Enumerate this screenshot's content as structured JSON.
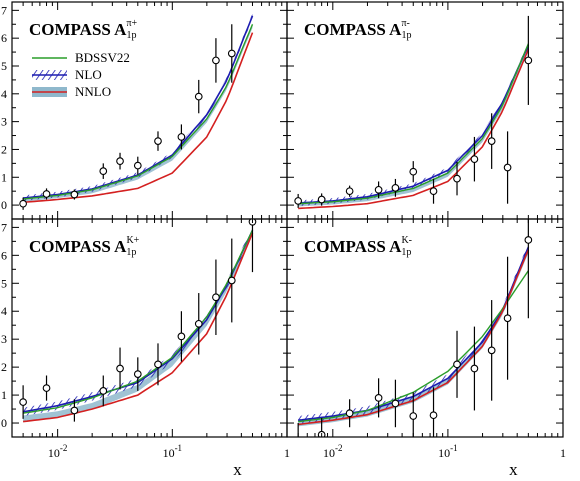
{
  "figure": {
    "xlabel": "x",
    "x_tick_labels": [
      {
        "base": "10",
        "exp": "-2",
        "value": 0.01
      },
      {
        "base": "10",
        "exp": "-1",
        "value": 0.1
      },
      {
        "base": "1",
        "exp": "",
        "value": 1
      }
    ],
    "y_tick_labels": [
      "0",
      "1",
      "2",
      "3",
      "4",
      "5",
      "6",
      "7"
    ],
    "legend": [
      {
        "label": "BDSSV22",
        "color": "#2a9d2a",
        "style": "line"
      },
      {
        "label": "NLO",
        "color": "#1c1cb0",
        "style": "hatch"
      },
      {
        "label": "NNLO",
        "color": "#8fb8cc",
        "style": "band"
      }
    ],
    "colors": {
      "bdssv22": "#2a9d2a",
      "nlo": "#1c1cb0",
      "nnlo_band": "#8fb8cc",
      "nnlo_line": "#d42020",
      "points": "#000000"
    }
  },
  "chart_data": [
    {
      "type": "line",
      "title": {
        "main": "COMPASS A",
        "sub": "1p",
        "sup": "π+"
      },
      "x_scale": "log",
      "xlim": [
        0.004,
        1.0
      ],
      "ylim": [
        -0.5,
        7.3
      ],
      "data_points": {
        "x": [
          0.005,
          0.008,
          0.014,
          0.025,
          0.035,
          0.05,
          0.075,
          0.12,
          0.17,
          0.24,
          0.33
        ],
        "y": [
          0.05,
          0.4,
          0.38,
          1.22,
          1.58,
          1.42,
          2.3,
          2.45,
          3.9,
          5.2,
          5.45
        ],
        "err": [
          0.22,
          0.2,
          0.18,
          0.28,
          0.3,
          0.32,
          0.35,
          0.45,
          0.6,
          0.8,
          1.05
        ]
      },
      "curves": {
        "x": [
          0.005,
          0.01,
          0.02,
          0.05,
          0.1,
          0.2,
          0.3,
          0.5
        ],
        "bdssv22": [
          0.22,
          0.35,
          0.55,
          1.05,
          1.75,
          3.1,
          4.3,
          6.5
        ],
        "nlo": [
          0.25,
          0.38,
          0.58,
          1.08,
          1.8,
          3.25,
          4.5,
          6.8
        ],
        "nlo_err": 0.1,
        "nnlo": [
          0.2,
          0.33,
          0.5,
          1.0,
          1.68,
          3.05,
          4.25,
          6.45
        ],
        "nnlo_err": 0.08,
        "nnlo_line": [
          0.1,
          0.2,
          0.33,
          0.6,
          1.15,
          2.45,
          3.8,
          6.2
        ]
      }
    },
    {
      "type": "line",
      "title": {
        "main": "COMPASS A",
        "sub": "1p",
        "sup": "π-"
      },
      "x_scale": "log",
      "xlim": [
        0.004,
        1.0
      ],
      "ylim": [
        -0.5,
        7.3
      ],
      "data_points": {
        "x": [
          0.005,
          0.008,
          0.014,
          0.025,
          0.035,
          0.05,
          0.075,
          0.12,
          0.17,
          0.24,
          0.33,
          0.5
        ],
        "y": [
          0.15,
          0.2,
          0.5,
          0.55,
          0.62,
          1.2,
          0.5,
          0.95,
          1.65,
          2.3,
          1.35,
          5.2
        ],
        "err": [
          0.25,
          0.22,
          0.2,
          0.3,
          0.32,
          0.38,
          0.45,
          0.6,
          0.8,
          1.0,
          1.3,
          1.6
        ]
      },
      "curves": {
        "x": [
          0.005,
          0.01,
          0.02,
          0.05,
          0.1,
          0.2,
          0.3,
          0.5
        ],
        "bdssv22": [
          0.05,
          0.12,
          0.25,
          0.6,
          1.15,
          2.4,
          3.6,
          5.8
        ],
        "nlo": [
          0.07,
          0.15,
          0.3,
          0.68,
          1.25,
          2.5,
          3.7,
          5.75
        ],
        "nlo_err": 0.1,
        "nnlo": [
          0.03,
          0.1,
          0.22,
          0.55,
          1.1,
          2.35,
          3.55,
          5.7
        ],
        "nnlo_err": 0.08,
        "nnlo_line": [
          -0.12,
          -0.05,
          0.05,
          0.35,
          0.85,
          2.1,
          3.4,
          5.6
        ]
      }
    },
    {
      "type": "line",
      "title": {
        "main": "COMPASS A",
        "sub": "1p",
        "sup": "K+"
      },
      "x_scale": "log",
      "xlim": [
        0.004,
        1.0
      ],
      "ylim": [
        -0.5,
        7.3
      ],
      "data_points": {
        "x": [
          0.005,
          0.008,
          0.014,
          0.025,
          0.035,
          0.05,
          0.075,
          0.12,
          0.17,
          0.24,
          0.33,
          0.5
        ],
        "y": [
          0.75,
          1.25,
          0.45,
          1.15,
          1.95,
          1.75,
          2.1,
          3.1,
          3.55,
          4.5,
          5.1,
          7.2
        ],
        "err": [
          0.6,
          0.45,
          0.4,
          0.55,
          0.75,
          0.6,
          0.75,
          0.9,
          1.1,
          1.35,
          1.5,
          1.8
        ]
      },
      "curves": {
        "x": [
          0.005,
          0.01,
          0.02,
          0.05,
          0.1,
          0.2,
          0.3,
          0.5
        ],
        "bdssv22": [
          0.35,
          0.55,
          0.9,
          1.5,
          2.35,
          3.8,
          5.0,
          6.9
        ],
        "nlo": [
          0.4,
          0.62,
          0.95,
          1.45,
          2.3,
          3.7,
          4.95,
          6.9
        ],
        "nlo_err": 0.15,
        "nnlo": [
          0.15,
          0.3,
          0.6,
          1.25,
          2.15,
          3.6,
          4.85,
          6.85
        ],
        "nnlo_err": 0.12,
        "nnlo_line": [
          0.05,
          0.2,
          0.5,
          1.0,
          1.8,
          3.2,
          4.6,
          6.8
        ]
      }
    },
    {
      "type": "line",
      "title": {
        "main": "COMPASS A",
        "sub": "1p",
        "sup": "K-"
      },
      "x_scale": "log",
      "xlim": [
        0.004,
        1.0
      ],
      "ylim": [
        -0.5,
        7.3
      ],
      "data_points": {
        "x": [
          0.005,
          0.008,
          0.014,
          0.025,
          0.035,
          0.05,
          0.075,
          0.12,
          0.17,
          0.24,
          0.33,
          0.5
        ],
        "y": [
          -0.8,
          -0.42,
          0.35,
          0.9,
          0.7,
          0.25,
          0.28,
          2.1,
          1.95,
          2.6,
          3.75,
          6.55
        ],
        "err": [
          0.8,
          0.6,
          0.5,
          0.7,
          0.85,
          0.85,
          1.0,
          1.2,
          1.5,
          1.8,
          2.2,
          2.8
        ]
      },
      "curves": {
        "x": [
          0.005,
          0.01,
          0.02,
          0.05,
          0.1,
          0.2,
          0.3,
          0.5
        ],
        "bdssv22": [
          0.05,
          0.2,
          0.45,
          1.1,
          1.85,
          3.1,
          4.1,
          5.45
        ],
        "nlo": [
          0.1,
          0.25,
          0.45,
          0.95,
          1.6,
          2.9,
          4.05,
          6.3
        ],
        "nlo_err": 0.15,
        "nnlo": [
          0.0,
          0.15,
          0.35,
          0.85,
          1.5,
          2.8,
          4.0,
          6.2
        ],
        "nnlo_err": 0.12,
        "nnlo_line": [
          -0.05,
          0.1,
          0.3,
          0.8,
          1.45,
          2.75,
          4.0,
          6.2
        ]
      }
    }
  ]
}
